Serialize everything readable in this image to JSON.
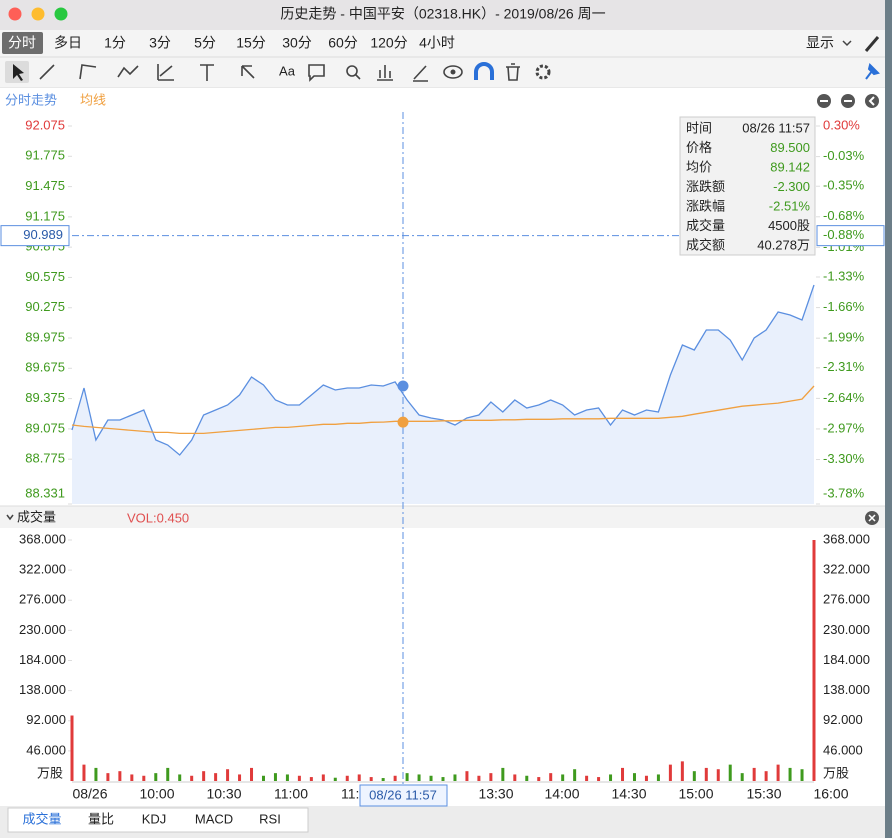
{
  "window": {
    "title": "历史走势 - 中国平安（02318.HK）- 2019/08/26 周一"
  },
  "timeframes": {
    "items": [
      "分时",
      "多日",
      "1分",
      "3分",
      "5分",
      "15分",
      "30分",
      "60分",
      "120分",
      "4小时"
    ],
    "selected": 0,
    "display": "显示"
  },
  "toolbar": {
    "font_button": "Aa"
  },
  "price_chart": {
    "type": "line",
    "up_color": "#e03a3a",
    "down_color": "#3f9a1e",
    "series": [
      {
        "name": "分时走势",
        "color": "#5b8fe0",
        "values": [
          89.064,
          89.48,
          88.965,
          89.163,
          89.163,
          89.213,
          89.262,
          88.965,
          88.915,
          88.816,
          88.965,
          89.213,
          89.262,
          89.312,
          89.411,
          89.589,
          89.51,
          89.361,
          89.312,
          89.312,
          89.411,
          89.51,
          89.46,
          89.48,
          89.48,
          89.51,
          89.5,
          89.54,
          89.361,
          89.213,
          89.183,
          89.163,
          89.113,
          89.183,
          89.213,
          89.341,
          89.242,
          89.361,
          89.282,
          89.312,
          89.361,
          89.312,
          89.213,
          89.262,
          89.282,
          89.113,
          89.262,
          89.213,
          89.262,
          89.242,
          89.609,
          89.906,
          89.856,
          90.054,
          90.054,
          89.955,
          89.757,
          89.975,
          90.054,
          90.233,
          90.203,
          90.153,
          90.5
        ]
      },
      {
        "name": "均线",
        "color": "#f0a040",
        "values": [
          89.113,
          89.1,
          89.09,
          89.08,
          89.07,
          89.06,
          89.05,
          89.04,
          89.04,
          89.03,
          89.03,
          89.03,
          89.04,
          89.05,
          89.06,
          89.07,
          89.08,
          89.09,
          89.09,
          89.1,
          89.11,
          89.12,
          89.12,
          89.13,
          89.13,
          89.14,
          89.142,
          89.15,
          89.15,
          89.15,
          89.15,
          89.155,
          89.155,
          89.16,
          89.16,
          89.16,
          89.165,
          89.165,
          89.17,
          89.17,
          89.17,
          89.175,
          89.175,
          89.175,
          89.175,
          89.18,
          89.18,
          89.18,
          89.18,
          89.18,
          89.19,
          89.2,
          89.22,
          89.24,
          89.26,
          89.28,
          89.3,
          89.31,
          89.32,
          89.33,
          89.35,
          89.37,
          89.5
        ]
      }
    ],
    "ylim": [
      88.331,
      92.075
    ],
    "yticks": [
      92.075,
      91.775,
      91.475,
      91.175,
      90.875,
      90.575,
      90.275,
      89.975,
      89.675,
      89.375,
      89.075,
      88.775,
      88.331
    ],
    "y2lim": [
      -3.78,
      0.3
    ],
    "y2ticks": [
      {
        "value": 0.3,
        "label": "0.30%"
      },
      {
        "value": -0.03,
        "label": "-0.03%"
      },
      {
        "value": -0.35,
        "label": "-0.35%"
      },
      {
        "value": -0.68,
        "label": "-0.68%"
      },
      {
        "value": -1.01,
        "label": "-1.01%"
      },
      {
        "value": -1.33,
        "label": "-1.33%"
      },
      {
        "value": -1.66,
        "label": "-1.66%"
      },
      {
        "value": -1.99,
        "label": "-1.99%"
      },
      {
        "value": -2.31,
        "label": "-2.31%"
      },
      {
        "value": -2.64,
        "label": "-2.64%"
      },
      {
        "value": -2.97,
        "label": "-2.97%"
      },
      {
        "value": -3.3,
        "label": "-3.30%"
      },
      {
        "value": -3.78,
        "label": "-3.78%"
      }
    ],
    "crosshair_price": 90.989,
    "crosshair_change": {
      "value": -0.88,
      "label": "-0.88%"
    },
    "tooltip": {
      "rows": [
        {
          "label": "时间",
          "value": "08/26 11:57"
        },
        {
          "label": "价格",
          "value": {
            "value": 89.5,
            "label": "89.500"
          }
        },
        {
          "label": "均价",
          "value": 89.142
        },
        {
          "label": "涨跌额",
          "value": {
            "value": -2.3,
            "label": "-2.300"
          }
        },
        {
          "label": "涨跌幅",
          "value": {
            "value": -2.51,
            "label": "-2.51%"
          }
        },
        {
          "label": "成交量",
          "value": "4500股"
        },
        {
          "label": "成交额",
          "value": "40.278万"
        }
      ]
    }
  },
  "volume_chart": {
    "type": "bar",
    "title": "成交量",
    "indicator": "VOL:0.450",
    "unit": "万股",
    "ylim": [
      0,
      368
    ],
    "yticks": [
      {
        "value": 368,
        "label": "368.000"
      },
      {
        "value": 322,
        "label": "322.000"
      },
      {
        "value": 276,
        "label": "276.000"
      },
      {
        "value": 230,
        "label": "230.000"
      },
      {
        "value": 184,
        "label": "184.000"
      },
      {
        "value": 138,
        "label": "138.000"
      },
      {
        "value": 92,
        "label": "92.000"
      },
      {
        "value": 46,
        "label": "46.000"
      }
    ],
    "values": [
      100,
      25,
      20,
      12,
      15,
      10,
      8,
      12,
      20,
      10,
      8,
      15,
      12,
      18,
      10,
      20,
      8,
      12,
      10,
      8,
      6,
      10,
      5,
      8,
      10,
      6,
      4.5,
      8,
      12,
      10,
      8,
      6,
      10,
      15,
      8,
      12,
      20,
      10,
      8,
      6,
      12,
      10,
      18,
      8,
      6,
      10,
      20,
      12,
      8,
      10,
      25,
      30,
      15,
      20,
      18,
      25,
      12,
      20,
      15,
      25,
      20,
      18,
      368
    ]
  },
  "time_axis": {
    "labels": [
      "08/26",
      "10:00",
      "10:30",
      "11:00",
      "11:30",
      "13:30",
      "14:00",
      "14:30",
      "15:00",
      "15:30",
      "16:00"
    ]
  },
  "indicator_tabs": {
    "items": [
      "成交量",
      "量比",
      "KDJ",
      "MACD",
      "RSI"
    ],
    "selected": 0
  }
}
